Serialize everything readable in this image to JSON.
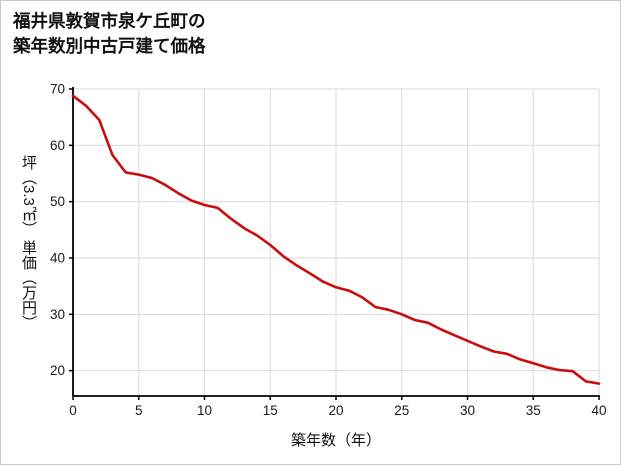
{
  "title": {
    "line1": "福井県敦賀市泉ケ丘町の",
    "line2": "築年数別中古戸建て価格"
  },
  "chart_data": {
    "type": "line",
    "title": "福井県敦賀市泉ケ丘町の築年数別中古戸建て価格",
    "xlabel": "築年数（年）",
    "ylabel": "坪（3.3㎡） 単価（万円）",
    "x": [
      0,
      1,
      2,
      3,
      4,
      5,
      6,
      7,
      8,
      9,
      10,
      11,
      12,
      13,
      14,
      15,
      16,
      17,
      18,
      19,
      20,
      21,
      22,
      23,
      24,
      25,
      26,
      27,
      28,
      29,
      30,
      31,
      32,
      33,
      34,
      35,
      36,
      37,
      38,
      39,
      40
    ],
    "values": [
      68.8,
      67.0,
      64.5,
      58.3,
      55.2,
      54.8,
      54.2,
      53.0,
      51.5,
      50.2,
      49.4,
      48.9,
      47.0,
      45.3,
      44.0,
      42.3,
      40.3,
      38.7,
      37.3,
      35.8,
      34.8,
      34.2,
      33.0,
      31.3,
      30.8,
      30.0,
      29.0,
      28.5,
      27.3,
      26.3,
      25.3,
      24.3,
      23.4,
      23.0,
      22.0,
      21.3,
      20.6,
      20.1,
      19.9,
      18.1,
      17.7
    ],
    "xlim": [
      0,
      40
    ],
    "ylim": [
      15.5,
      70
    ],
    "x_ticks": [
      0,
      5,
      10,
      15,
      20,
      25,
      30,
      35,
      40
    ],
    "y_ticks": [
      20,
      30,
      40,
      50,
      60,
      70
    ],
    "grid": true,
    "legend": "none",
    "line_color": "#c90c0e",
    "grid_color": "#dadada",
    "axis_color": "#000000"
  }
}
